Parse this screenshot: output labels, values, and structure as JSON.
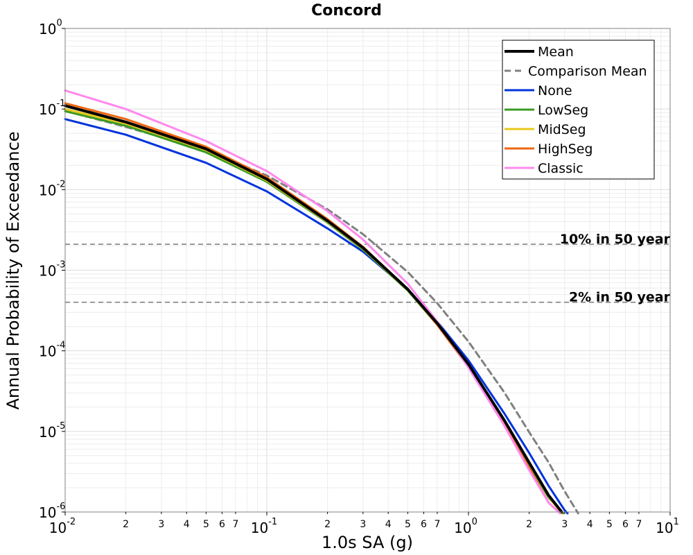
{
  "chart_data": {
    "type": "line",
    "title": "Concord",
    "xlabel": "1.0s SA (g)",
    "ylabel": "Annual Probability of Exceedance",
    "x_scale": "log",
    "y_scale": "log",
    "xlim": [
      0.01,
      10
    ],
    "ylim": [
      1e-06,
      1
    ],
    "grid": true,
    "legend_position": "top-right",
    "x_major_ticks": [
      {
        "base": "10",
        "exp": "-2"
      },
      {
        "base": "10",
        "exp": "-1"
      },
      {
        "base": "10",
        "exp": "0"
      },
      {
        "base": "10",
        "exp": "1"
      }
    ],
    "y_major_ticks": [
      {
        "base": "10",
        "exp": "0"
      },
      {
        "base": "10",
        "exp": "-1"
      },
      {
        "base": "10",
        "exp": "-2"
      },
      {
        "base": "10",
        "exp": "-3"
      },
      {
        "base": "10",
        "exp": "-4"
      },
      {
        "base": "10",
        "exp": "-5"
      },
      {
        "base": "10",
        "exp": "-6"
      }
    ],
    "x_minor_tick_labels": [
      "2",
      "3",
      "4",
      "5",
      "6",
      "7"
    ],
    "reference_lines": [
      {
        "label": "10% in 50 year",
        "y": 0.0021,
        "color": "#808080"
      },
      {
        "label": "2% in 50 year",
        "y": 0.0004,
        "color": "#808080"
      }
    ],
    "series": [
      {
        "name": "Mean",
        "color": "#000000",
        "dash": "solid",
        "width": 4,
        "x": [
          0.01,
          0.02,
          0.05,
          0.1,
          0.2,
          0.3,
          0.5,
          0.7,
          1.0,
          1.5,
          2.0,
          2.5,
          2.9
        ],
        "y": [
          0.11,
          0.069,
          0.032,
          0.0135,
          0.0041,
          0.0019,
          0.00058,
          0.00022,
          6.8e-05,
          1.4e-05,
          4.1e-06,
          1.6e-06,
          1e-06
        ]
      },
      {
        "name": "Comparison Mean",
        "color": "#808080",
        "dash": "dashed",
        "width": 3,
        "x": [
          0.01,
          0.02,
          0.05,
          0.1,
          0.2,
          0.3,
          0.5,
          0.7,
          1.0,
          1.5,
          2.0,
          2.5,
          3.0,
          3.5
        ],
        "y": [
          0.095,
          0.06,
          0.031,
          0.015,
          0.0057,
          0.0028,
          0.00095,
          0.00039,
          0.00013,
          3.1e-05,
          9.8e-06,
          4.1e-06,
          1.8e-06,
          9.5e-07
        ]
      },
      {
        "name": "None",
        "color": "#0033dd",
        "dash": "solid",
        "width": 3,
        "x": [
          0.01,
          0.02,
          0.05,
          0.1,
          0.2,
          0.3,
          0.5,
          0.7,
          1.0,
          1.5,
          2.0,
          2.5,
          3.0,
          3.1
        ],
        "y": [
          0.075,
          0.048,
          0.0215,
          0.0095,
          0.0033,
          0.0017,
          0.00058,
          0.00023,
          7.6e-05,
          1.7e-05,
          5.4e-06,
          2.1e-06,
          1.05e-06,
          9.5e-07
        ]
      },
      {
        "name": "LowSeg",
        "color": "#3a9a20",
        "dash": "solid",
        "width": 3,
        "x": [
          0.01,
          0.02,
          0.05,
          0.1,
          0.2,
          0.3,
          0.5,
          0.7,
          1.0,
          1.5,
          2.0,
          2.5,
          2.95
        ],
        "y": [
          0.094,
          0.062,
          0.029,
          0.0125,
          0.0039,
          0.0018,
          0.00056,
          0.00021,
          6.6e-05,
          1.35e-05,
          3.9e-06,
          1.5e-06,
          9.5e-07
        ]
      },
      {
        "name": "MidSeg",
        "color": "#e8c81a",
        "dash": "solid",
        "width": 3,
        "x": [
          0.01,
          0.02,
          0.05,
          0.1,
          0.2,
          0.3,
          0.5,
          0.7,
          1.0,
          1.5,
          2.0,
          2.5,
          2.9
        ],
        "y": [
          0.1,
          0.066,
          0.031,
          0.013,
          0.004,
          0.00185,
          0.00057,
          0.000215,
          6.7e-05,
          1.38e-05,
          4e-06,
          1.55e-06,
          9.5e-07
        ]
      },
      {
        "name": "HighSeg",
        "color": "#ee6611",
        "dash": "solid",
        "width": 3,
        "x": [
          0.01,
          0.02,
          0.05,
          0.1,
          0.2,
          0.3,
          0.5,
          0.7,
          1.0,
          1.5,
          2.0,
          2.5,
          2.85
        ],
        "y": [
          0.118,
          0.075,
          0.034,
          0.0142,
          0.0043,
          0.00195,
          0.00058,
          0.00021,
          6.3e-05,
          1.25e-05,
          3.5e-06,
          1.3e-06,
          9.5e-07
        ]
      },
      {
        "name": "Classic",
        "color": "#ff88ee",
        "dash": "solid",
        "width": 3,
        "x": [
          0.01,
          0.02,
          0.05,
          0.1,
          0.2,
          0.3,
          0.5,
          0.7,
          1.0,
          1.5,
          2.0,
          2.5,
          2.85
        ],
        "y": [
          0.17,
          0.1,
          0.04,
          0.017,
          0.0054,
          0.0024,
          0.00068,
          0.00023,
          6.2e-05,
          1.2e-05,
          3.3e-06,
          1.3e-06,
          9.5e-07
        ]
      }
    ]
  }
}
